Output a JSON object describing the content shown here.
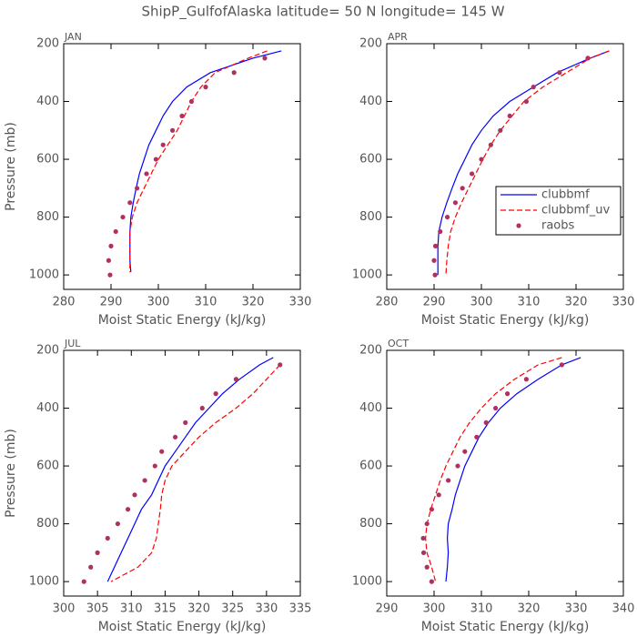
{
  "title": "ShipP_GulfofAlaska   latitude= 50 N longitude= 145 W",
  "chart_data": [
    {
      "type": "line",
      "title": "JAN",
      "xlabel": "Moist Static Energy (kJ/kg)",
      "ylabel": "Pressure (mb)",
      "xlim": [
        280,
        330
      ],
      "xticks": [
        280,
        290,
        300,
        310,
        320,
        330
      ],
      "ylim": [
        1050,
        200
      ],
      "yticks": [
        200,
        400,
        600,
        800,
        1000
      ],
      "series": [
        {
          "name": "clubbmf",
          "color": "#0000ff",
          "style": "solid",
          "x": [
            326,
            320,
            311,
            306,
            303,
            301,
            299.5,
            298,
            297,
            296,
            295.3,
            294.7,
            294.2,
            294,
            294,
            294,
            294.2
          ],
          "y": [
            225,
            250,
            300,
            350,
            400,
            450,
            500,
            550,
            600,
            650,
            700,
            750,
            800,
            850,
            900,
            950,
            990
          ]
        },
        {
          "name": "clubbmf_uv",
          "color": "#ff0000",
          "style": "dashed",
          "x": [
            323,
            319,
            312,
            309,
            307,
            305.5,
            304,
            302,
            300,
            298.5,
            297,
            295.5,
            294.5,
            294,
            294,
            294,
            294
          ],
          "y": [
            225,
            250,
            300,
            350,
            400,
            450,
            500,
            550,
            600,
            650,
            700,
            750,
            800,
            850,
            900,
            950,
            990
          ]
        },
        {
          "name": "raobs",
          "color": "#b03060",
          "style": "markers",
          "x": [
            322.5,
            316,
            310,
            307,
            305,
            303,
            301,
            299.5,
            297.5,
            295.5,
            294,
            292.5,
            291,
            290,
            289.5,
            289.8
          ],
          "y": [
            250,
            300,
            350,
            400,
            450,
            500,
            550,
            600,
            650,
            700,
            750,
            800,
            850,
            900,
            950,
            1000
          ]
        }
      ]
    },
    {
      "type": "line",
      "title": "APR",
      "xlabel": "Moist Static Energy (kJ/kg)",
      "legend": "right",
      "xlim": [
        280,
        330
      ],
      "xticks": [
        280,
        290,
        300,
        310,
        320,
        330
      ],
      "ylim": [
        1050,
        200
      ],
      "yticks": [
        200,
        400,
        600,
        800,
        1000
      ],
      "series": [
        {
          "name": "clubbmf",
          "color": "#0000ff",
          "style": "solid",
          "x": [
            327,
            323,
            316,
            311,
            306,
            302.5,
            300,
            298,
            296.5,
            295,
            293.8,
            292.7,
            291.7,
            291,
            290.8,
            290.8,
            290.8
          ],
          "y": [
            225,
            250,
            300,
            350,
            400,
            450,
            500,
            550,
            600,
            650,
            700,
            750,
            800,
            850,
            900,
            950,
            1000
          ]
        },
        {
          "name": "clubbmf_uv",
          "color": "#ff0000",
          "style": "dashed",
          "x": [
            327,
            323,
            318,
            313,
            309,
            306.5,
            304,
            302,
            300.3,
            298.8,
            297.3,
            295.8,
            294.5,
            293.5,
            293,
            292.7,
            292.5
          ],
          "y": [
            225,
            250,
            300,
            350,
            400,
            450,
            500,
            550,
            600,
            650,
            700,
            750,
            800,
            850,
            900,
            950,
            1000
          ]
        },
        {
          "name": "raobs",
          "color": "#b03060",
          "style": "markers",
          "x": [
            322.5,
            316.5,
            311,
            309.5,
            306,
            304,
            302,
            300,
            298,
            296,
            294.5,
            292.8,
            291.3,
            290.3,
            290,
            290.2
          ],
          "y": [
            250,
            300,
            350,
            400,
            450,
            500,
            550,
            600,
            650,
            700,
            750,
            800,
            850,
            900,
            950,
            1000
          ]
        }
      ]
    },
    {
      "type": "line",
      "title": "JUL",
      "xlabel": "Moist Static Energy (kJ/kg)",
      "ylabel": "Pressure (mb)",
      "xlim": [
        300,
        335
      ],
      "xticks": [
        300,
        305,
        310,
        315,
        320,
        325,
        330,
        335
      ],
      "ylim": [
        1050,
        200
      ],
      "yticks": [
        200,
        400,
        600,
        800,
        1000
      ],
      "series": [
        {
          "name": "clubbmf",
          "color": "#0000ff",
          "style": "solid",
          "x": [
            331,
            329,
            326,
            323.5,
            321.5,
            319.5,
            318,
            316.5,
            315,
            314,
            313,
            311.5,
            310.5,
            309.5,
            308.5,
            307.5,
            306.5
          ],
          "y": [
            225,
            250,
            300,
            350,
            400,
            450,
            500,
            550,
            600,
            650,
            700,
            750,
            800,
            850,
            900,
            950,
            1000
          ]
        },
        {
          "name": "clubbmf_uv",
          "color": "#ff0000",
          "style": "dashed",
          "x": [
            332,
            330,
            328,
            325.5,
            322.5,
            320,
            318,
            316,
            315,
            314.5,
            314.3,
            314,
            313.7,
            313,
            311,
            307
          ],
          "y": [
            250,
            300,
            350,
            400,
            450,
            500,
            550,
            600,
            650,
            700,
            750,
            800,
            850,
            900,
            950,
            1000
          ]
        },
        {
          "name": "raobs",
          "color": "#b03060",
          "style": "markers",
          "x": [
            332,
            325.5,
            322.5,
            320.5,
            318,
            316.5,
            314.5,
            313.5,
            312,
            310.5,
            309.5,
            308,
            306.5,
            305,
            304,
            303
          ],
          "y": [
            250,
            300,
            350,
            400,
            450,
            500,
            550,
            600,
            650,
            700,
            750,
            800,
            850,
            900,
            950,
            1000
          ]
        }
      ]
    },
    {
      "type": "line",
      "title": "OCT",
      "xlabel": "Moist Static Energy (kJ/kg)",
      "xlim": [
        290,
        340
      ],
      "xticks": [
        290,
        300,
        310,
        320,
        330,
        340
      ],
      "ylim": [
        1050,
        200
      ],
      "yticks": [
        200,
        400,
        600,
        800,
        1000
      ],
      "series": [
        {
          "name": "clubbmf",
          "color": "#0000ff",
          "style": "solid",
          "x": [
            331,
            327,
            322,
            317.5,
            314,
            311.5,
            309.5,
            308,
            306.5,
            305.5,
            304.5,
            303.8,
            303,
            302.8,
            303,
            302.8,
            302.5
          ],
          "y": [
            225,
            250,
            300,
            350,
            400,
            450,
            500,
            550,
            600,
            650,
            700,
            750,
            800,
            850,
            900,
            950,
            1000
          ]
        },
        {
          "name": "clubbmf_uv",
          "color": "#ff0000",
          "style": "dashed",
          "x": [
            327,
            322,
            317,
            313,
            310,
            307.5,
            305.5,
            304,
            302.5,
            301.3,
            300.3,
            299.3,
            298.5,
            298.2,
            298.5,
            299.5,
            300.3
          ],
          "y": [
            225,
            250,
            300,
            350,
            400,
            450,
            500,
            550,
            600,
            650,
            700,
            750,
            800,
            850,
            900,
            950,
            1000
          ]
        },
        {
          "name": "raobs",
          "color": "#b03060",
          "style": "markers",
          "x": [
            327,
            319.5,
            315.5,
            313,
            311,
            309,
            306.5,
            305,
            303,
            301,
            299.5,
            298.5,
            297.7,
            297.8,
            298.5,
            299.5
          ],
          "y": [
            250,
            300,
            350,
            400,
            450,
            500,
            550,
            600,
            650,
            700,
            750,
            800,
            850,
            900,
            950,
            1000
          ]
        }
      ]
    }
  ]
}
